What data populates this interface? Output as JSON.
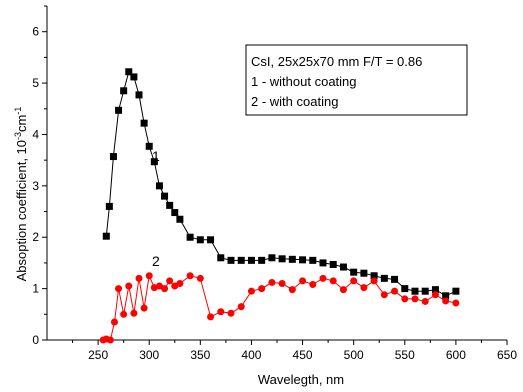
{
  "chart_data": {
    "type": "line",
    "xlabel": "Wavelegth, nm",
    "ylabel_main": "Absoption coefficient, 10",
    "ylabel_sup1": "-3",
    "ylabel_mid": "cm",
    "ylabel_sup2": "-1",
    "xlim": [
      200,
      650
    ],
    "ylim": [
      0,
      6.5
    ],
    "xticks": [
      "250",
      "300",
      "350",
      "400",
      "450",
      "500",
      "550",
      "600",
      "650"
    ],
    "yticks": [
      "0",
      "1",
      "2",
      "3",
      "4",
      "5",
      "6"
    ],
    "grid": false,
    "legend_position": "top-right",
    "legend_lines": [
      "CsI, 25x25x70 mm  F/T = 0.86",
      "1 - without coating",
      "2 - with coating"
    ],
    "series": [
      {
        "label": "1",
        "color": "#000000",
        "marker": "square",
        "x": [
          258,
          261,
          265,
          270,
          275,
          280,
          285,
          290,
          295,
          300,
          305,
          310,
          315,
          320,
          325,
          330,
          340,
          350,
          360,
          370,
          380,
          390,
          400,
          410,
          420,
          430,
          440,
          450,
          460,
          470,
          480,
          490,
          500,
          510,
          520,
          530,
          540,
          550,
          560,
          570,
          580,
          590,
          600
        ],
        "y": [
          2.02,
          2.6,
          3.57,
          4.47,
          4.85,
          5.22,
          5.12,
          4.77,
          4.22,
          3.77,
          3.47,
          3.0,
          2.8,
          2.62,
          2.48,
          2.35,
          2.0,
          1.95,
          1.95,
          1.6,
          1.55,
          1.55,
          1.55,
          1.55,
          1.6,
          1.58,
          1.57,
          1.56,
          1.55,
          1.5,
          1.47,
          1.42,
          1.32,
          1.3,
          1.25,
          1.2,
          1.18,
          1.0,
          0.95,
          0.95,
          0.98,
          0.86,
          0.95
        ]
      },
      {
        "label": "2",
        "color": "#ff0000",
        "marker": "circle",
        "x": [
          255,
          258,
          262,
          266,
          270,
          275,
          280,
          285,
          290,
          295,
          300,
          305,
          310,
          315,
          320,
          325,
          330,
          340,
          350,
          360,
          370,
          380,
          390,
          400,
          410,
          420,
          430,
          440,
          450,
          460,
          470,
          480,
          490,
          500,
          510,
          520,
          530,
          540,
          550,
          560,
          570,
          580,
          590,
          600
        ],
        "y": [
          0.0,
          0.02,
          0.0,
          0.35,
          1.0,
          0.5,
          1.05,
          0.52,
          1.2,
          0.62,
          1.25,
          1.02,
          1.05,
          1.0,
          1.15,
          1.05,
          1.1,
          1.25,
          1.2,
          0.45,
          0.55,
          0.52,
          0.65,
          0.95,
          1.0,
          1.12,
          1.1,
          0.98,
          1.15,
          1.08,
          1.2,
          1.15,
          0.98,
          1.15,
          1.02,
          1.15,
          0.88,
          0.95,
          0.8,
          0.8,
          0.75,
          0.88,
          0.76,
          0.72
        ]
      }
    ]
  }
}
